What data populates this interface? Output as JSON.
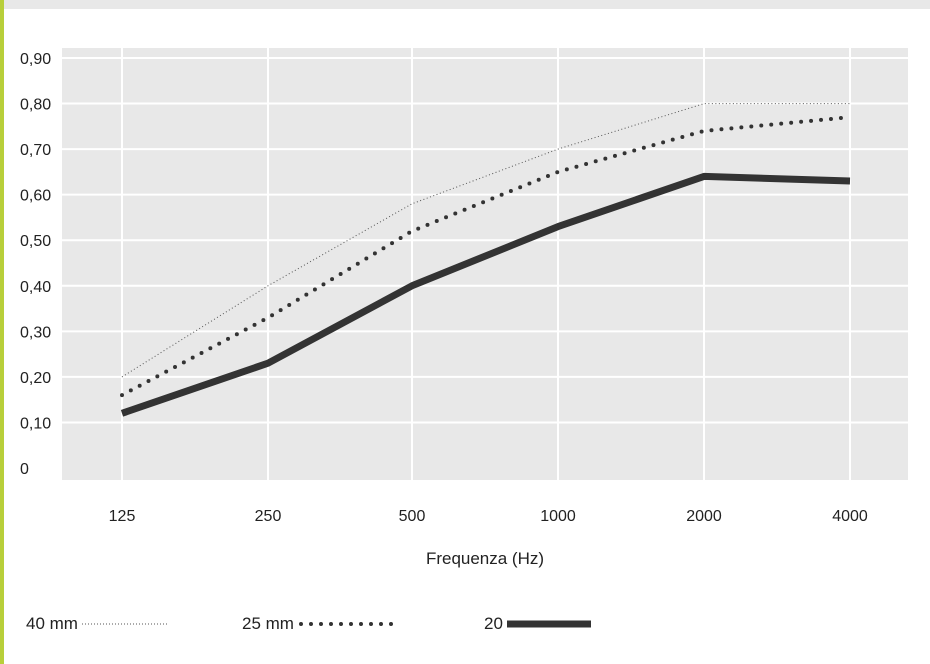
{
  "chart_data": {
    "type": "line",
    "categories": [
      "125",
      "250",
      "500",
      "1000",
      "2000",
      "4000"
    ],
    "xlabel": "Frequenza (Hz)",
    "ylabel": "",
    "yticks": [
      "0",
      "0,10",
      "0,20",
      "0,30",
      "0,40",
      "0,50",
      "0,60",
      "0,70",
      "0,80",
      "0,90"
    ],
    "ylim": [
      0,
      0.9
    ],
    "grid": true,
    "legend_position": "bottom",
    "series": [
      {
        "name": "40 mm",
        "style": "thin-dotted",
        "color": "#555555",
        "values": [
          0.2,
          0.4,
          0.58,
          0.7,
          0.8,
          0.8
        ]
      },
      {
        "name": "25 mm",
        "style": "dotted",
        "color": "#333333",
        "values": [
          0.16,
          0.33,
          0.52,
          0.65,
          0.74,
          0.77
        ]
      },
      {
        "name": "20",
        "style": "solid-thick",
        "color": "#333333",
        "values": [
          0.12,
          0.23,
          0.4,
          0.53,
          0.64,
          0.63
        ]
      }
    ]
  }
}
